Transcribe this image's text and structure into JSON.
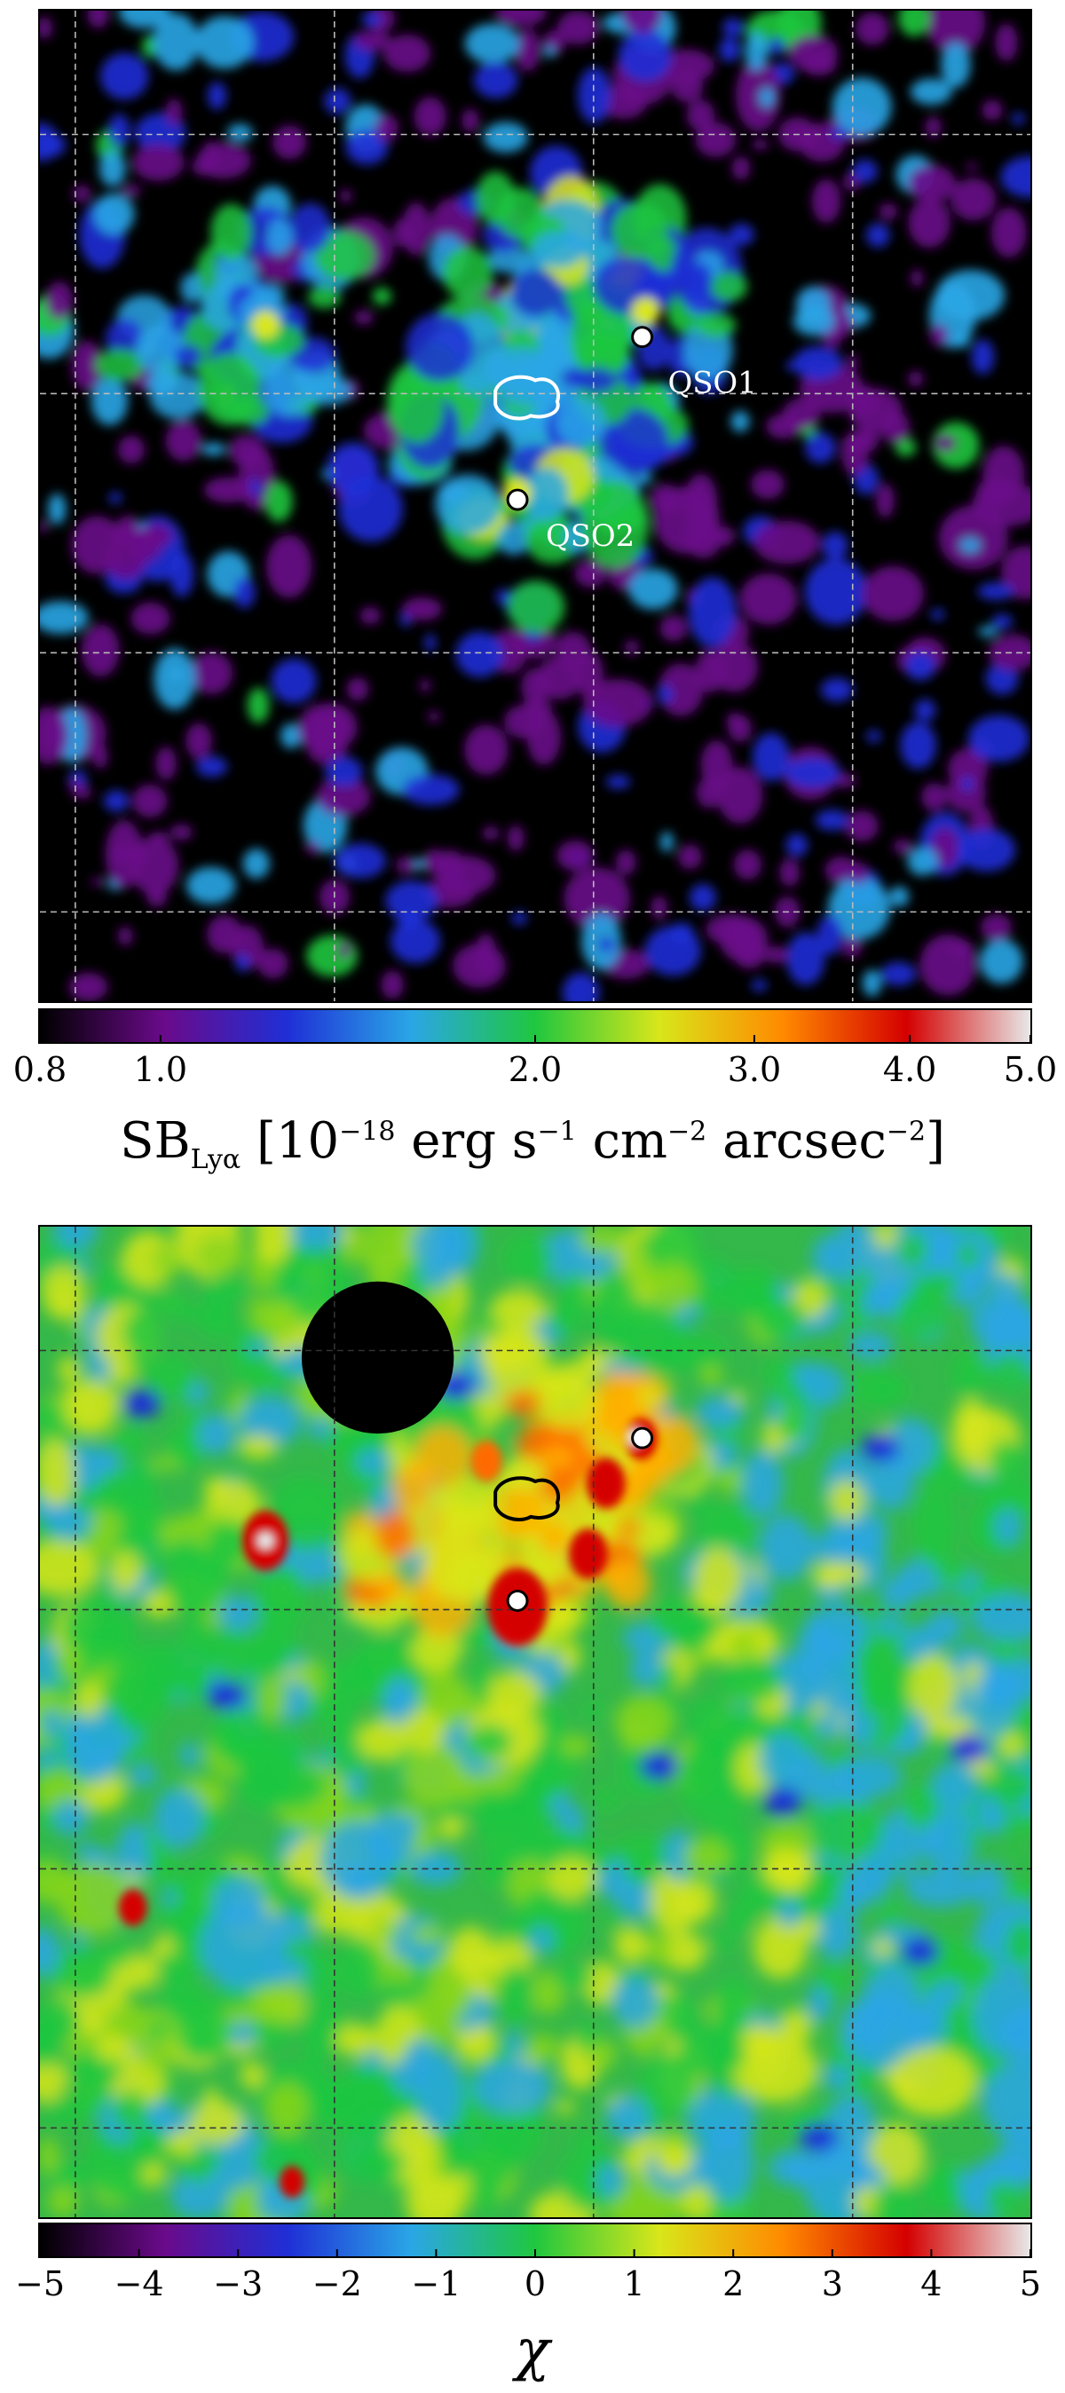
{
  "top_panel": {
    "sources": [
      {
        "name": "QSO1"
      },
      {
        "name": "QSO2"
      }
    ],
    "colorbar": {
      "ticks": [
        "0.8",
        "1.0",
        "2.0",
        "3.0",
        "4.0",
        "5.0"
      ],
      "tick_values": [
        0.8,
        1.0,
        2.0,
        3.0,
        4.0,
        5.0
      ],
      "range": [
        0.8,
        5.0
      ],
      "scale": "log",
      "colormap": [
        "#000000",
        "#6a0a8a",
        "#1f2fd6",
        "#2aa6e6",
        "#1fc73f",
        "#d8e61a",
        "#ff8a00",
        "#d40000",
        "#e8e8e8"
      ]
    },
    "label_base": "SB",
    "label_sub": "Lyα",
    "label_units": {
      "pre": " [10",
      "exp1": "−18",
      "erg": " erg s",
      "exp2": "−1",
      "cm": " cm",
      "exp3": "−2",
      "arc": " arcsec",
      "exp4": "−2",
      "close": "]"
    }
  },
  "bottom_panel": {
    "colorbar": {
      "ticks": [
        "−5",
        "−4",
        "−3",
        "−2",
        "−1",
        "0",
        "1",
        "2",
        "3",
        "4",
        "5"
      ],
      "tick_values": [
        -5,
        -4,
        -3,
        -2,
        -1,
        0,
        1,
        2,
        3,
        4,
        5
      ],
      "range": [
        -5,
        5
      ],
      "scale": "linear",
      "colormap": [
        "#000000",
        "#6a0a8a",
        "#1f2fd6",
        "#2aa6e6",
        "#1fc73f",
        "#d8e61a",
        "#ff8a00",
        "#d40000",
        "#e8e8e8"
      ]
    },
    "label": "χ"
  },
  "colors": {
    "grid_top": "#bbbbbb",
    "grid_bottom": "#333333",
    "marker_fill": "#ffffff",
    "marker_edge": "#000000"
  }
}
